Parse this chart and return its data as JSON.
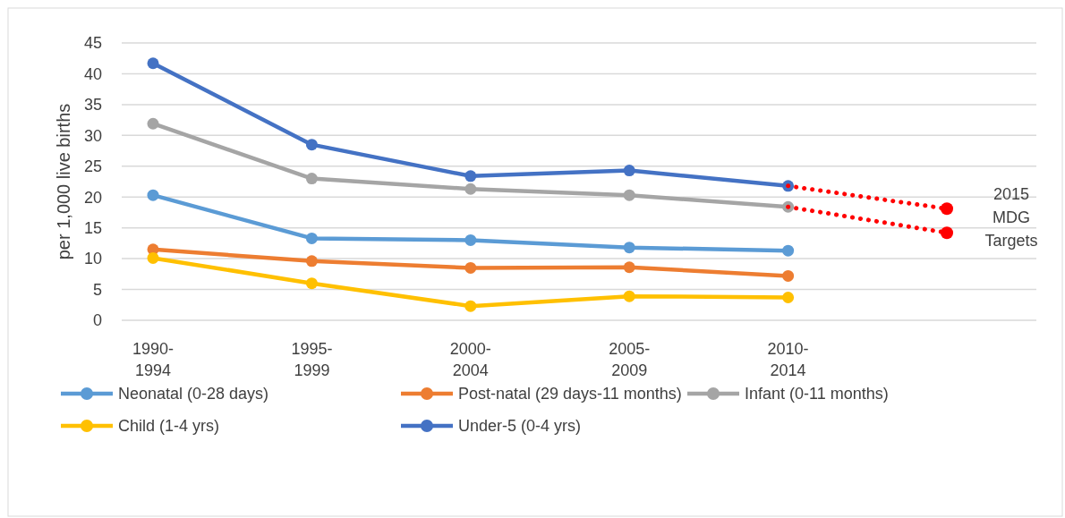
{
  "chart_data": {
    "type": "line",
    "ylabel": "per 1,000 live births",
    "categories": [
      "1990-1994",
      "1995-1999",
      "2000-2004",
      "2005-2009",
      "2010-2014",
      null
    ],
    "ylim": [
      0,
      45
    ],
    "yticks": [
      0,
      5,
      10,
      15,
      20,
      25,
      30,
      35,
      40,
      45
    ],
    "grid": "y",
    "legend": "bottom",
    "marker": "circle",
    "annotations": [
      "2015 MDG Targets"
    ],
    "series": [
      {
        "name": "Neonatal (0-28 days)",
        "color": "#5b9bd5",
        "values": [
          20.3,
          13.3,
          13.0,
          11.8,
          11.3,
          null
        ]
      },
      {
        "name": "Post-natal (29 days-11 months)",
        "color": "#ed7d31",
        "values": [
          11.5,
          9.6,
          8.5,
          8.6,
          7.2,
          null
        ]
      },
      {
        "name": "Infant (0-11 months)",
        "color": "#a5a5a5",
        "values": [
          31.9,
          23.0,
          21.3,
          20.3,
          18.4,
          null
        ]
      },
      {
        "name": "Child (1-4 yrs)",
        "color": "#ffc000",
        "values": [
          10.1,
          6.0,
          2.3,
          3.9,
          3.7,
          null
        ]
      },
      {
        "name": "Under-5 (0-4 yrs)",
        "color": "#4472c4",
        "values": [
          41.7,
          28.5,
          23.4,
          24.3,
          21.8,
          null
        ]
      },
      {
        "color": "#ff0000",
        "line_style": "dotted",
        "marker": "none",
        "values": [
          null,
          null,
          null,
          null,
          21.8,
          18.1
        ]
      },
      {
        "color": "#ff0000",
        "line_style": "dotted",
        "marker": "none",
        "values": [
          null,
          null,
          null,
          null,
          18.4,
          14.2
        ]
      },
      {
        "type": "scatter",
        "color": "#ff0000",
        "values": [
          null,
          null,
          null,
          null,
          null,
          18.1
        ]
      },
      {
        "type": "scatter",
        "color": "#ff0000",
        "values": [
          null,
          null,
          null,
          null,
          null,
          14.2
        ]
      }
    ]
  }
}
